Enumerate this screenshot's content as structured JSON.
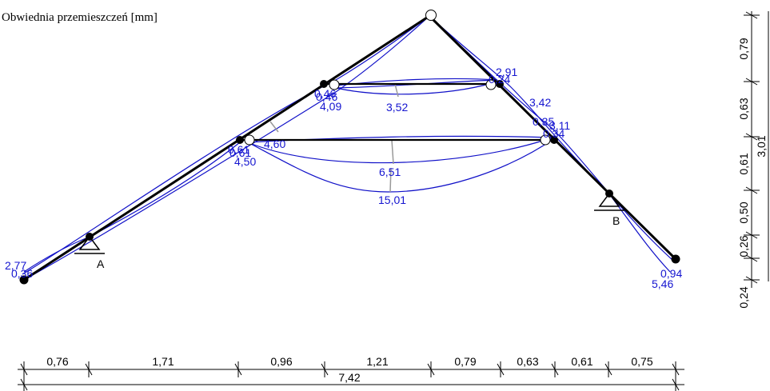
{
  "title": "Obwiednia przemieszczeń [mm]",
  "supports": {
    "a": "A",
    "b": "B"
  },
  "displacement_labels": [
    "2,77",
    "0,36",
    "0,61",
    "0,61",
    "4,50",
    "4,60",
    "0,46",
    "0,46",
    "4,09",
    "3,52",
    "2,91",
    "0,24",
    "3,42",
    "0,35",
    "3,11",
    "0,34",
    "6,51",
    "15,01",
    "0,94",
    "5,46"
  ],
  "horizontal_dims": {
    "segments": [
      "0,76",
      "1,71",
      "0,96",
      "1,21",
      "0,79",
      "0,63",
      "0,61",
      "0,75"
    ],
    "total": "7,42"
  },
  "vertical_dims": {
    "segments": [
      "0,79",
      "0,63",
      "0,61",
      "0,50",
      "0,26",
      "0,24"
    ],
    "total": "3,01"
  },
  "colors": {
    "structure": "#000000",
    "envelope": "#1010c8",
    "labels": "#1515d0",
    "max_marker": "#999999"
  }
}
